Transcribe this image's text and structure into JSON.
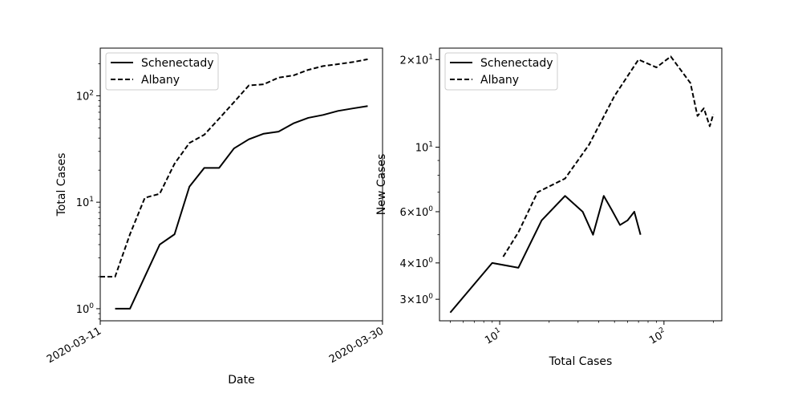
{
  "chart_data": [
    {
      "type": "line",
      "xlabel": "Date",
      "ylabel": "Total Cases",
      "yscale": "log",
      "xlim": [
        "2020-03-11",
        "2020-03-30"
      ],
      "ylim": [
        0.77,
        280
      ],
      "xticks": [
        "2020-03-11",
        "2020-03-30"
      ],
      "yticks": [
        {
          "value": 1,
          "base": "10",
          "exp": "0"
        },
        {
          "value": 10,
          "base": "10",
          "exp": "1"
        },
        {
          "value": 100,
          "base": "10",
          "exp": "2"
        }
      ],
      "grid": false,
      "legend": "top-left",
      "series": [
        {
          "name": "Schenectady",
          "style": "solid",
          "color": "#000000",
          "x": [
            "2020-03-12",
            "2020-03-13",
            "2020-03-14",
            "2020-03-15",
            "2020-03-16",
            "2020-03-17",
            "2020-03-18",
            "2020-03-19",
            "2020-03-20",
            "2020-03-21",
            "2020-03-22",
            "2020-03-23",
            "2020-03-24",
            "2020-03-25",
            "2020-03-26",
            "2020-03-27",
            "2020-03-28",
            "2020-03-29"
          ],
          "y": [
            1,
            1,
            2,
            4,
            5,
            14,
            21,
            21,
            32,
            39,
            44,
            46,
            55,
            62,
            66,
            72,
            76,
            80
          ]
        },
        {
          "name": "Albany",
          "style": "dashed",
          "color": "#000000",
          "x": [
            "2020-03-11",
            "2020-03-12",
            "2020-03-13",
            "2020-03-14",
            "2020-03-15",
            "2020-03-16",
            "2020-03-17",
            "2020-03-18",
            "2020-03-19",
            "2020-03-20",
            "2020-03-21",
            "2020-03-22",
            "2020-03-23",
            "2020-03-24",
            "2020-03-25",
            "2020-03-26",
            "2020-03-27",
            "2020-03-28",
            "2020-03-29"
          ],
          "y": [
            2,
            2,
            5,
            11,
            12,
            23,
            36,
            43,
            61,
            87,
            125,
            128,
            148,
            155,
            175,
            190,
            198,
            207,
            220
          ]
        }
      ]
    },
    {
      "type": "line",
      "xlabel": "Total Cases",
      "ylabel": "New Cases",
      "xscale": "log",
      "yscale": "log",
      "xlim": [
        4.3,
        225
      ],
      "ylim": [
        2.53,
        21.9
      ],
      "xticks": [
        {
          "value": 10,
          "base": "10",
          "exp": "1"
        },
        {
          "value": 100,
          "base": "10",
          "exp": "2"
        }
      ],
      "yticks": [
        {
          "value": 3,
          "mant": "3",
          "base": "10",
          "exp": "0"
        },
        {
          "value": 4,
          "mant": "4",
          "base": "10",
          "exp": "0"
        },
        {
          "value": 6,
          "mant": "6",
          "base": "10",
          "exp": "0"
        },
        {
          "value": 10,
          "base": "10",
          "exp": "1"
        },
        {
          "value": 20,
          "mant": "2",
          "base": "10",
          "exp": "1"
        }
      ],
      "grid": false,
      "legend": "top-left",
      "series": [
        {
          "name": "Schenectady",
          "style": "solid",
          "color": "#000000",
          "x": [
            5,
            9,
            13,
            18,
            25,
            32,
            37,
            43,
            48,
            54,
            60,
            66,
            72
          ],
          "y": [
            2.7,
            4.0,
            3.85,
            5.6,
            6.8,
            6.0,
            5.0,
            6.8,
            6.1,
            5.4,
            5.6,
            6.0,
            5.0
          ]
        },
        {
          "name": "Albany",
          "style": "dashed",
          "color": "#000000",
          "x": [
            10.5,
            13,
            17,
            25,
            35,
            50,
            70,
            90,
            110,
            145,
            160,
            175,
            190,
            200
          ],
          "y": [
            4.2,
            5.1,
            7.0,
            7.8,
            10.2,
            15.0,
            20.0,
            18.8,
            20.5,
            16.6,
            12.8,
            13.6,
            11.8,
            13.0
          ]
        }
      ]
    }
  ]
}
